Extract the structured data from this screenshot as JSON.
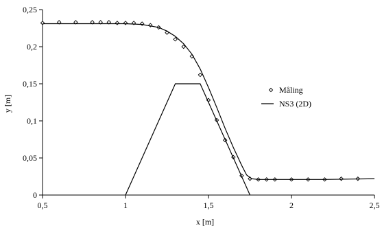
{
  "chart_data": {
    "type": "scatter",
    "title": "",
    "xlabel": "x [m]",
    "ylabel": "y [m]",
    "xlim": [
      0.5,
      2.5
    ],
    "ylim": [
      0,
      0.25
    ],
    "x_ticks": [
      0.5,
      1,
      1.5,
      2,
      2.5
    ],
    "x_tick_labels": [
      "0,5",
      "1",
      "1,5",
      "2",
      "2,5"
    ],
    "y_ticks": [
      0,
      0.05,
      0.1,
      0.15,
      0.2,
      0.25
    ],
    "y_tick_labels": [
      "0",
      "0,05",
      "0,1",
      "0,15",
      "0,2",
      "0,25"
    ],
    "grid": false,
    "legend_position": "right",
    "series": [
      {
        "name": "Måling",
        "style": "markers",
        "marker": "diamond",
        "x": [
          0.5,
          0.6,
          0.7,
          0.8,
          0.85,
          0.9,
          0.95,
          1.0,
          1.05,
          1.1,
          1.15,
          1.2,
          1.25,
          1.3,
          1.35,
          1.4,
          1.45,
          1.5,
          1.55,
          1.6,
          1.65,
          1.7,
          1.75,
          1.8,
          1.85,
          1.9,
          2.0,
          2.1,
          2.2,
          2.3,
          2.4
        ],
        "y": [
          0.232,
          0.233,
          0.233,
          0.233,
          0.233,
          0.233,
          0.232,
          0.232,
          0.232,
          0.231,
          0.229,
          0.226,
          0.219,
          0.21,
          0.2,
          0.187,
          0.162,
          0.128,
          0.101,
          0.074,
          0.051,
          0.026,
          0.022,
          0.021,
          0.021,
          0.021,
          0.021,
          0.021,
          0.021,
          0.022,
          0.022
        ]
      },
      {
        "name": "NS3 (2D)",
        "style": "line",
        "x": [
          0.5,
          0.8,
          1.0,
          1.1,
          1.2,
          1.25,
          1.3,
          1.35,
          1.4,
          1.45,
          1.5,
          1.55,
          1.6,
          1.65,
          1.7,
          1.73,
          1.76,
          1.8,
          1.9,
          2.0,
          2.2,
          2.5
        ],
        "y": [
          0.231,
          0.231,
          0.231,
          0.23,
          0.226,
          0.221,
          0.214,
          0.204,
          0.19,
          0.17,
          0.145,
          0.118,
          0.09,
          0.064,
          0.04,
          0.027,
          0.022,
          0.021,
          0.021,
          0.021,
          0.021,
          0.022
        ]
      },
      {
        "name": "",
        "style": "outline",
        "x": [
          1.0,
          1.3,
          1.45,
          1.75
        ],
        "y": [
          0,
          0.15,
          0.15,
          0
        ]
      }
    ]
  },
  "colors": {
    "axis": "#000000",
    "line": "#000000",
    "marker_stroke": "#000000",
    "marker_fill": "#ffffff",
    "background": "#ffffff"
  }
}
